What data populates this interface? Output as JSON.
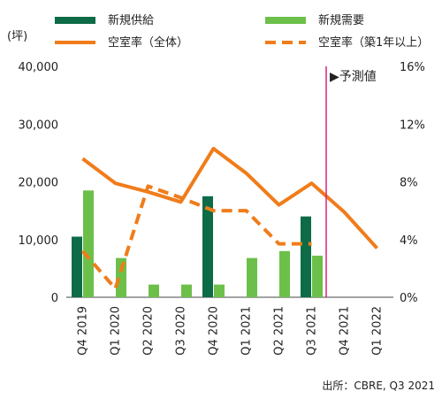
{
  "chart_data": {
    "type": "bar",
    "categories": [
      "Q4 2019",
      "Q1 2020",
      "Q2 2020",
      "Q3 2020",
      "Q4 2020",
      "Q1 2021",
      "Q2 2021",
      "Q3 2021",
      "Q4 2021",
      "Q1 2022"
    ],
    "unit_left": "(坪)",
    "y_left": {
      "min": 0,
      "max": 40000,
      "ticks": [
        "0",
        "10,000",
        "20,000",
        "30,000",
        "40,000"
      ]
    },
    "y_right": {
      "min": 0,
      "max": 16,
      "ticks": [
        "0%",
        "4%",
        "8%",
        "12%",
        "16%"
      ]
    },
    "series": [
      {
        "name": "新規供給",
        "kind": "bar",
        "axis": "left",
        "color": "#0d6b47",
        "values": [
          10500,
          null,
          null,
          null,
          17500,
          null,
          null,
          14000,
          null,
          null
        ]
      },
      {
        "name": "新規需要",
        "kind": "bar",
        "axis": "left",
        "color": "#6cc04a",
        "values": [
          18500,
          6800,
          2200,
          2200,
          2200,
          6800,
          8000,
          7200,
          null,
          null
        ]
      },
      {
        "name": "空室率（全体）",
        "kind": "line",
        "axis": "right",
        "color": "#f07c1a",
        "style": "solid",
        "values": [
          9.6,
          7.9,
          7.3,
          6.6,
          10.3,
          8.6,
          6.4,
          7.9,
          5.9,
          3.4
        ]
      },
      {
        "name": "空室率（築1年以上）",
        "kind": "line",
        "axis": "right",
        "color": "#f07c1a",
        "style": "dashed",
        "values": [
          3.2,
          0.6,
          7.7,
          6.9,
          6.0,
          6.0,
          3.7,
          3.7,
          null,
          null
        ]
      }
    ],
    "forecast_marker": {
      "label": "▶予測値",
      "after_category": "Q3 2021",
      "color": "#d8247a"
    },
    "legend_position": "top",
    "source": "出所：CBRE, Q3 2021",
    "grid": false
  }
}
